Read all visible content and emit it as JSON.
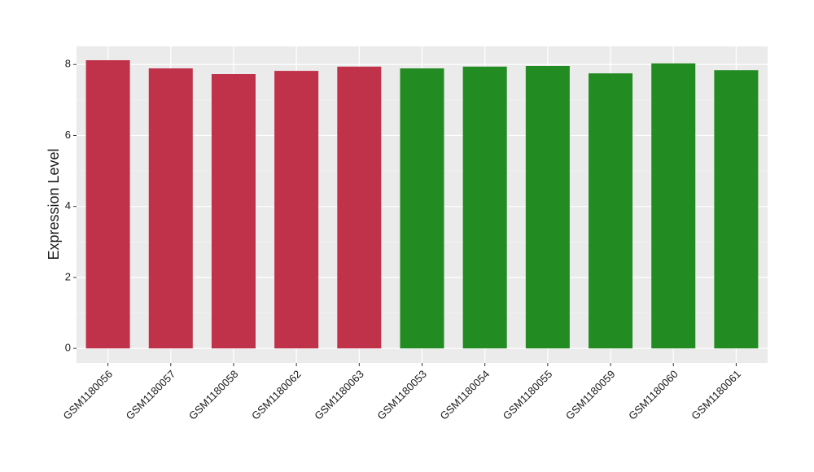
{
  "chart_data": {
    "type": "bar",
    "y_label": "Expression Level",
    "categories": [
      "GSM1180056",
      "GSM1180057",
      "GSM1180058",
      "GSM1180062",
      "GSM1180063",
      "GSM1180053",
      "GSM1180054",
      "GSM1180055",
      "GSM1180059",
      "GSM1180060",
      "GSM1180061"
    ],
    "values": [
      8.12,
      7.89,
      7.73,
      7.82,
      7.94,
      7.89,
      7.94,
      7.96,
      7.75,
      8.03,
      7.84
    ],
    "colors": [
      "#c0314a",
      "#c0314a",
      "#c0314a",
      "#c0314a",
      "#c0314a",
      "#228b22",
      "#228b22",
      "#228b22",
      "#228b22",
      "#228b22",
      "#228b22"
    ],
    "ylim": [
      -0.41,
      8.51
    ],
    "yticks": [
      0,
      2,
      4,
      6,
      8
    ],
    "minor_yticks": [
      1,
      3,
      5,
      7
    ],
    "grid": true
  }
}
